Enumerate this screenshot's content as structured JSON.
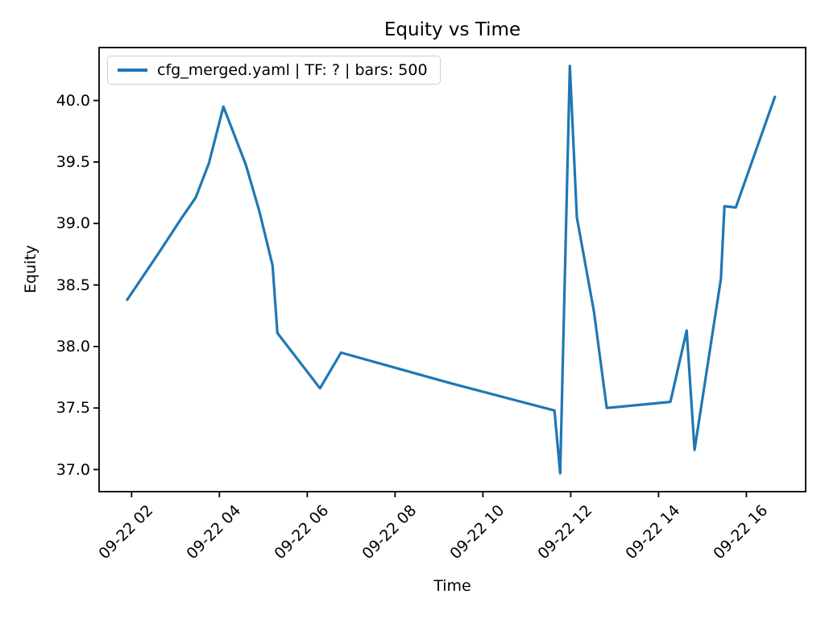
{
  "figure": {
    "background": "#ffffff",
    "spine_color": "#000000"
  },
  "chart_data": {
    "type": "line",
    "title": "Equity vs Time",
    "xlabel": "Time",
    "ylabel": "Equity",
    "grid": false,
    "legend": {
      "position": "upper left",
      "entries": [
        {
          "label": "cfg_merged.yaml | TF: ? | bars: 500",
          "color": "#1f77b4"
        }
      ]
    },
    "xlim_hours": [
      1.26,
      17.35
    ],
    "ylim": [
      36.82,
      40.43
    ],
    "x_ticks": {
      "rotation_deg": 45,
      "hours": [
        2,
        4,
        6,
        8,
        10,
        12,
        14,
        16
      ],
      "labels": [
        "09-22 02",
        "09-22 04",
        "09-22 06",
        "09-22 08",
        "09-22 10",
        "09-22 12",
        "09-22 14",
        "09-22 16"
      ]
    },
    "y_ticks": {
      "values": [
        37.0,
        37.5,
        38.0,
        38.5,
        39.0,
        39.5,
        40.0
      ],
      "labels": [
        "37.0",
        "37.5",
        "38.0",
        "38.5",
        "39.0",
        "39.5",
        "40.0"
      ]
    },
    "series": [
      {
        "name": "cfg_merged.yaml | TF: ? | bars: 500",
        "color": "#1f77b4",
        "line_width": 3.2,
        "points": [
          {
            "time": "09-22 01:54",
            "hour": 1.9,
            "equity": 38.38
          },
          {
            "time": "09-22 02:36",
            "hour": 2.6,
            "equity": 38.75
          },
          {
            "time": "09-22 03:08",
            "hour": 3.13,
            "equity": 39.04
          },
          {
            "time": "09-22 03:28",
            "hour": 3.46,
            "equity": 39.21
          },
          {
            "time": "09-22 03:46",
            "hour": 3.76,
            "equity": 39.49
          },
          {
            "time": "09-22 04:05",
            "hour": 4.09,
            "equity": 39.95
          },
          {
            "time": "09-22 04:36",
            "hour": 4.6,
            "equity": 39.48
          },
          {
            "time": "09-22 04:55",
            "hour": 4.91,
            "equity": 39.1
          },
          {
            "time": "09-22 05:13",
            "hour": 5.21,
            "equity": 38.66
          },
          {
            "time": "09-22 05:19",
            "hour": 5.32,
            "equity": 38.11
          },
          {
            "time": "09-22 06:17",
            "hour": 6.29,
            "equity": 37.66
          },
          {
            "time": "09-22 06:46",
            "hour": 6.77,
            "equity": 37.95
          },
          {
            "time": "09-22 09:17",
            "hour": 9.28,
            "equity": 37.7
          },
          {
            "time": "09-22 11:38",
            "hour": 11.63,
            "equity": 37.48
          },
          {
            "time": "09-22 11:46",
            "hour": 11.76,
            "equity": 36.97
          },
          {
            "time": "09-22 11:59",
            "hour": 11.98,
            "equity": 40.28
          },
          {
            "time": "09-22 12:08",
            "hour": 12.14,
            "equity": 39.05
          },
          {
            "time": "09-22 12:32",
            "hour": 12.53,
            "equity": 38.28
          },
          {
            "time": "09-22 12:49",
            "hour": 12.82,
            "equity": 37.5
          },
          {
            "time": "09-22 14:16",
            "hour": 14.27,
            "equity": 37.55
          },
          {
            "time": "09-22 14:38",
            "hour": 14.64,
            "equity": 38.13
          },
          {
            "time": "09-22 14:49",
            "hour": 14.82,
            "equity": 37.16
          },
          {
            "time": "09-22 15:25",
            "hour": 15.42,
            "equity": 38.55
          },
          {
            "time": "09-22 15:30",
            "hour": 15.5,
            "equity": 39.14
          },
          {
            "time": "09-22 15:46",
            "hour": 15.76,
            "equity": 39.13
          },
          {
            "time": "09-22 16:39",
            "hour": 16.65,
            "equity": 40.03
          }
        ]
      }
    ]
  }
}
